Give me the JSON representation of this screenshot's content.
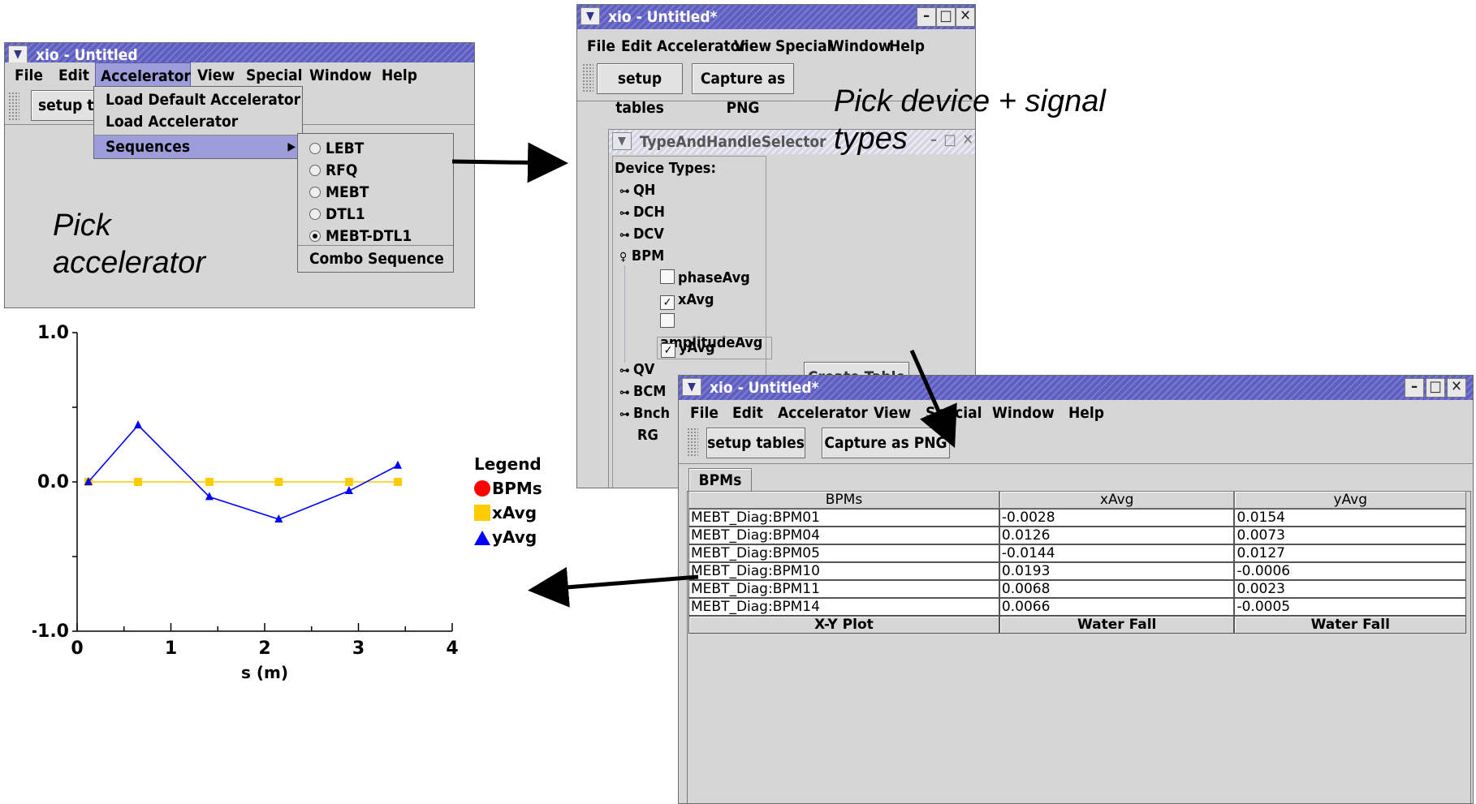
{
  "captions": {
    "pick_accelerator": [
      "Pick",
      "accelerator"
    ],
    "pick_device": [
      "Pick device + signal",
      "types"
    ]
  },
  "win1": {
    "title": "xio - Untitled",
    "menu": [
      "File",
      "Edit",
      "Accelerator",
      "View",
      "Special",
      "Window",
      "Help"
    ],
    "setup_label": "setup ta",
    "accel_menu": [
      "Load Default Accelerator",
      "Load Accelerator",
      "Sequences"
    ],
    "sequences": [
      {
        "label": "LEBT",
        "selected": false
      },
      {
        "label": "RFQ",
        "selected": false
      },
      {
        "label": "MEBT",
        "selected": false
      },
      {
        "label": "DTL1",
        "selected": false
      },
      {
        "label": "MEBT-DTL1",
        "selected": true
      }
    ],
    "combo": "Combo Sequence"
  },
  "win2": {
    "title": "xio - Untitled*",
    "menu": [
      "File",
      "Edit",
      "Accelerator",
      "View",
      "Special",
      "Window",
      "Help"
    ],
    "setup_label": "setup tables",
    "capture_label": "Capture as PNG",
    "inner_title": "TypeAndHandleSelector",
    "device_types_label": "Device Types:",
    "devices_top": [
      "QH",
      "DCH",
      "DCV"
    ],
    "bpm_label": "BPM",
    "signals": [
      {
        "label": "phaseAvg",
        "checked": false
      },
      {
        "label": "xAvg",
        "checked": true
      },
      {
        "label": "amplitudeAvg",
        "checked": false
      },
      {
        "label": "yAvg",
        "checked": true
      }
    ],
    "devices_bottom": [
      "QV",
      "BCM",
      "Bnch"
    ],
    "device_leaf": "RG",
    "partial_button": "Create Table"
  },
  "win3": {
    "title": "xio - Untitled*",
    "menu": [
      "File",
      "Edit",
      "Accelerator",
      "View",
      "Special",
      "Window",
      "Help"
    ],
    "setup_label": "setup tables",
    "capture_label": "Capture as PNG",
    "tab": "BPMs",
    "columns": [
      "BPMs",
      "xAvg",
      "yAvg"
    ],
    "rows": [
      [
        "MEBT_Diag:BPM01",
        "-0.0028",
        "0.0154"
      ],
      [
        "MEBT_Diag:BPM04",
        "0.0126",
        "0.0073"
      ],
      [
        "MEBT_Diag:BPM05",
        "-0.0144",
        "0.0127"
      ],
      [
        "MEBT_Diag:BPM10",
        "0.0193",
        "-0.0006"
      ],
      [
        "MEBT_Diag:BPM11",
        "0.0068",
        "0.0023"
      ],
      [
        "MEBT_Diag:BPM14",
        "0.0066",
        "-0.0005"
      ]
    ],
    "footer_buttons": [
      "X-Y Plot",
      "Water Fall",
      "Water Fall"
    ]
  },
  "chart_data": {
    "type": "line",
    "title": "",
    "xlabel": "s (m)",
    "ylabel": "",
    "xlim": [
      0,
      4
    ],
    "ylim": [
      -1.0,
      1.0
    ],
    "x_ticks": [
      "0",
      "1",
      "2",
      "3",
      "4"
    ],
    "y_ticks": [
      "1.0",
      "0.0",
      "-1.0"
    ],
    "legend_title": "Legend",
    "series": [
      {
        "name": "BPMs",
        "color": "#ff0000",
        "marker": "circle",
        "x": [],
        "y": []
      },
      {
        "name": "xAvg",
        "color": "#ffcc00",
        "marker": "square",
        "x": [
          0.12,
          0.65,
          1.41,
          2.15,
          2.9,
          3.42
        ],
        "y": [
          0.0,
          0.0,
          0.0,
          0.0,
          0.0,
          0.0
        ]
      },
      {
        "name": "yAvg",
        "color": "#0000ff",
        "marker": "triangle",
        "x": [
          0.12,
          0.65,
          1.41,
          2.15,
          2.9,
          3.42
        ],
        "y": [
          0.0,
          0.38,
          -0.1,
          -0.25,
          -0.06,
          0.11
        ]
      }
    ]
  }
}
